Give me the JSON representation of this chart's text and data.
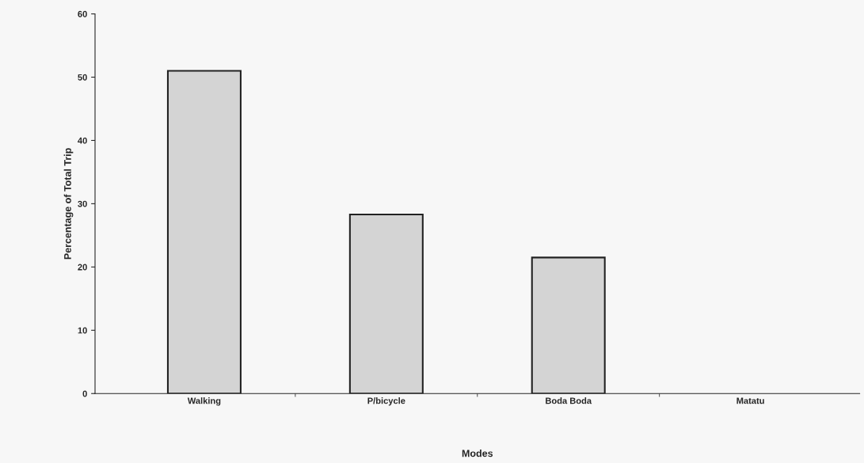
{
  "chart_data": {
    "type": "bar",
    "xlabel": "Modes",
    "ylabel": "Percentage of Total Trip",
    "categories": [
      "Walking",
      "P/bicycle",
      "Boda Boda",
      "Matatu"
    ],
    "values": [
      51,
      28.3,
      21.5,
      null
    ],
    "color": "#d4d4d4",
    "ylim": [
      0,
      60
    ],
    "yticks": [
      0,
      10,
      20,
      30,
      40,
      50,
      60
    ],
    "grid": false,
    "legend": false
  }
}
